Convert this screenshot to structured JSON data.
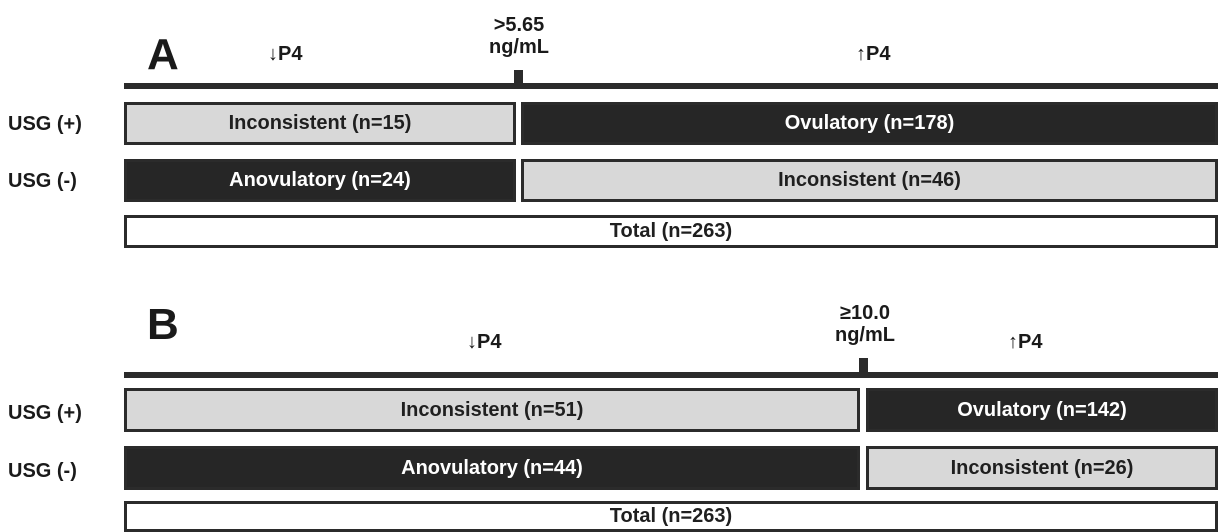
{
  "panels": [
    {
      "letter": "A",
      "low_label": "↓P4",
      "high_label": "↑P4",
      "threshold_line1": ">5.65",
      "threshold_line2": "ng/mL",
      "usg_pos_label": "USG (+)",
      "usg_neg_label": "USG (-)",
      "usg_pos_low": "Inconsistent (n=15)",
      "usg_pos_high": "Ovulatory (n=178)",
      "usg_neg_low": "Anovulatory (n=24)",
      "usg_neg_high": "Inconsistent (n=46)",
      "total": "Total (n=263)"
    },
    {
      "letter": "B",
      "low_label": "↓P4",
      "high_label": "↑P4",
      "threshold_line1": "≥10.0",
      "threshold_line2": "ng/mL",
      "usg_pos_label": "USG (+)",
      "usg_neg_label": "USG (-)",
      "usg_pos_low": "Inconsistent (n=51)",
      "usg_pos_high": "Ovulatory (n=142)",
      "usg_neg_low": "Anovulatory (n=44)",
      "usg_neg_high": "Inconsistent (n=26)",
      "total": "Total (n=263)"
    }
  ],
  "colors": {
    "inconsistent": "#d8d8d8",
    "classified": "#262626",
    "total": "#ffffff"
  }
}
